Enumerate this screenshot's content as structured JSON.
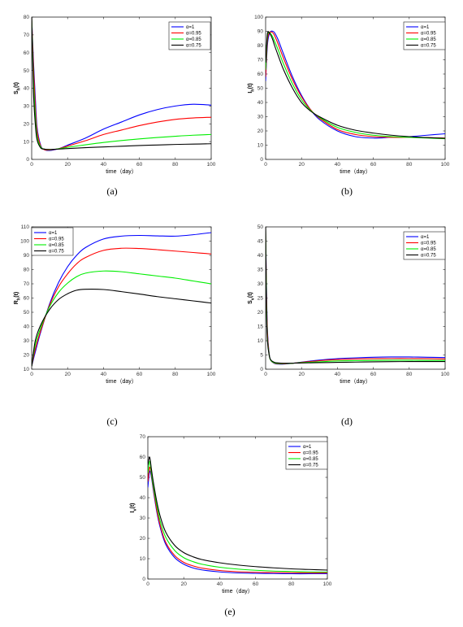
{
  "legend_labels": [
    "α=1",
    "α=0.95",
    "α=0.85",
    "α=0.75"
  ],
  "series_colors": [
    "#0000ff",
    "#ff0000",
    "#00ee00",
    "#000000"
  ],
  "chart_data": [
    {
      "type": "line",
      "caption": "(a)",
      "ylabel": "S_h(t)",
      "xlabel": "time（day）",
      "xlim": [
        0,
        100
      ],
      "ylim": [
        0,
        80
      ],
      "xticks": [
        0,
        20,
        40,
        60,
        80,
        100
      ],
      "yticks": [
        0,
        10,
        20,
        30,
        40,
        50,
        60,
        70,
        80
      ],
      "legend": "top-right",
      "series": [
        {
          "name": "α=1",
          "x": [
            0,
            1,
            2,
            3,
            5,
            7,
            10,
            15,
            20,
            30,
            40,
            50,
            60,
            70,
            80,
            90,
            100
          ],
          "y": [
            80,
            55,
            35,
            18,
            8,
            5.5,
            5,
            6,
            8,
            12,
            17,
            21,
            25,
            28,
            30,
            31,
            30.5
          ]
        },
        {
          "name": "α=0.95",
          "x": [
            0,
            1,
            2,
            3,
            5,
            7,
            10,
            15,
            20,
            30,
            40,
            50,
            60,
            70,
            80,
            90,
            100
          ],
          "y": [
            80,
            52,
            30,
            16,
            7.5,
            5.5,
            5.3,
            6,
            7.5,
            10.5,
            14,
            16.5,
            19,
            21,
            22.5,
            23.3,
            23.7
          ]
        },
        {
          "name": "α=0.85",
          "x": [
            0,
            1,
            2,
            3,
            5,
            7,
            10,
            15,
            20,
            30,
            40,
            50,
            60,
            70,
            80,
            90,
            100
          ],
          "y": [
            80,
            45,
            25,
            13,
            7,
            5.8,
            5.5,
            6,
            6.8,
            8.2,
            9.5,
            10.6,
            11.5,
            12.3,
            13,
            13.6,
            14
          ]
        },
        {
          "name": "α=0.75",
          "x": [
            0,
            1,
            2,
            3,
            5,
            7,
            10,
            15,
            20,
            30,
            40,
            50,
            60,
            70,
            80,
            90,
            100
          ],
          "y": [
            80,
            38,
            20,
            11,
            6.5,
            5.8,
            5.6,
            5.8,
            6.1,
            6.6,
            7,
            7.4,
            7.8,
            8.1,
            8.4,
            8.6,
            8.8
          ]
        }
      ]
    },
    {
      "type": "line",
      "caption": "(b)",
      "ylabel": "I_h(t)",
      "xlabel": "time（day）",
      "xlim": [
        0,
        100
      ],
      "ylim": [
        0,
        100
      ],
      "xticks": [
        0,
        20,
        40,
        60,
        80,
        100
      ],
      "yticks": [
        0,
        10,
        20,
        30,
        40,
        50,
        60,
        70,
        80,
        90,
        100
      ],
      "legend": "top-right",
      "series": [
        {
          "name": "α=1",
          "x": [
            0,
            1,
            2,
            3,
            4,
            5,
            7,
            10,
            15,
            20,
            25,
            30,
            40,
            50,
            60,
            70,
            80,
            90,
            100
          ],
          "y": [
            55,
            80,
            88,
            90,
            90,
            89,
            84,
            74,
            58,
            45,
            35,
            28,
            20,
            16,
            15,
            15.5,
            16,
            17,
            18
          ]
        },
        {
          "name": "α=0.95",
          "x": [
            0,
            1,
            2,
            3,
            4,
            5,
            7,
            10,
            15,
            20,
            25,
            30,
            40,
            50,
            60,
            70,
            80,
            90,
            100
          ],
          "y": [
            58,
            83,
            89,
            89.5,
            89,
            87,
            81,
            71,
            56,
            44,
            35,
            29,
            21,
            17.5,
            16,
            15.5,
            15.5,
            15.3,
            15
          ]
        },
        {
          "name": "α=0.85",
          "x": [
            0,
            1,
            2,
            3,
            4,
            5,
            7,
            10,
            15,
            20,
            25,
            30,
            40,
            50,
            60,
            70,
            80,
            90,
            100
          ],
          "y": [
            63,
            86,
            89,
            88,
            86,
            83,
            77,
            67,
            53,
            42,
            34.5,
            29.5,
            22.5,
            19,
            17,
            16,
            15.5,
            15,
            14.5
          ]
        },
        {
          "name": "α=0.75",
          "x": [
            0,
            1,
            2,
            3,
            4,
            5,
            7,
            10,
            15,
            20,
            25,
            30,
            40,
            50,
            60,
            70,
            80,
            90,
            100
          ],
          "y": [
            68,
            88,
            89,
            87,
            84,
            80,
            73,
            63,
            50,
            40,
            34,
            30,
            24,
            20.5,
            18.5,
            17,
            16,
            15.3,
            14.8
          ]
        }
      ]
    },
    {
      "type": "line",
      "caption": "(c)",
      "ylabel": "R_h(t)",
      "xlabel": "time（day）",
      "xlim": [
        0,
        100
      ],
      "ylim": [
        10,
        110
      ],
      "xticks": [
        0,
        20,
        40,
        60,
        80,
        100
      ],
      "yticks": [
        10,
        20,
        30,
        40,
        50,
        60,
        70,
        80,
        90,
        100,
        110
      ],
      "legend": "top-left",
      "series": [
        {
          "name": "α=1",
          "x": [
            0,
            2,
            5,
            10,
            15,
            20,
            25,
            30,
            40,
            50,
            60,
            70,
            80,
            90,
            100
          ],
          "y": [
            12,
            22,
            36,
            56,
            71,
            82,
            90,
            95.5,
            101.5,
            103.5,
            104,
            103.7,
            103.5,
            104.5,
            106
          ]
        },
        {
          "name": "α=0.95",
          "x": [
            0,
            2,
            5,
            10,
            15,
            20,
            25,
            30,
            40,
            50,
            60,
            70,
            80,
            90,
            100
          ],
          "y": [
            12,
            24,
            37,
            55,
            68,
            77,
            84,
            88.5,
            93.5,
            95,
            94.8,
            94,
            93,
            92,
            91
          ]
        },
        {
          "name": "α=0.85",
          "x": [
            0,
            2,
            5,
            10,
            15,
            20,
            25,
            30,
            40,
            50,
            60,
            70,
            80,
            90,
            100
          ],
          "y": [
            12,
            27,
            39,
            54,
            64,
            70.5,
            75,
            77.5,
            79,
            78.5,
            77,
            75.5,
            74,
            72,
            70
          ]
        },
        {
          "name": "α=0.75",
          "x": [
            0,
            2,
            5,
            10,
            15,
            20,
            25,
            30,
            40,
            50,
            60,
            70,
            80,
            90,
            100
          ],
          "y": [
            12,
            30,
            41,
            52,
            59,
            63,
            65.5,
            66.2,
            66,
            64.5,
            62.8,
            61,
            59.5,
            58,
            56.5
          ]
        }
      ]
    },
    {
      "type": "line",
      "caption": "(d)",
      "ylabel": "S_v(t)",
      "xlabel": "time（day）",
      "xlim": [
        0,
        100
      ],
      "ylim": [
        0,
        50
      ],
      "xticks": [
        0,
        20,
        40,
        60,
        80,
        100
      ],
      "yticks": [
        0,
        5,
        10,
        15,
        20,
        25,
        30,
        35,
        40,
        45,
        50
      ],
      "legend": "top-right",
      "series": [
        {
          "name": "α=1",
          "x": [
            0,
            0.5,
            1,
            2,
            3,
            5,
            7,
            10,
            15,
            20,
            30,
            40,
            50,
            60,
            70,
            80,
            90,
            100
          ],
          "y": [
            50,
            28,
            14,
            5.5,
            3,
            2,
            1.8,
            1.8,
            2.1,
            2.5,
            3.2,
            3.7,
            4,
            4.2,
            4.3,
            4.3,
            4.2,
            4.1
          ]
        },
        {
          "name": "α=0.95",
          "x": [
            0,
            0.5,
            1,
            2,
            3,
            5,
            7,
            10,
            15,
            20,
            30,
            40,
            50,
            60,
            70,
            80,
            90,
            100
          ],
          "y": [
            50,
            26,
            13,
            5.2,
            3,
            2.1,
            1.9,
            1.9,
            2.1,
            2.4,
            3,
            3.4,
            3.6,
            3.7,
            3.75,
            3.75,
            3.7,
            3.6
          ]
        },
        {
          "name": "α=0.85",
          "x": [
            0,
            0.5,
            1,
            2,
            3,
            5,
            7,
            10,
            15,
            20,
            30,
            40,
            50,
            60,
            70,
            80,
            90,
            100
          ],
          "y": [
            50,
            23,
            11,
            5,
            3,
            2.2,
            2,
            2,
            2.1,
            2.3,
            2.6,
            2.9,
            3,
            3.1,
            3.15,
            3.15,
            3.1,
            3.1
          ]
        },
        {
          "name": "α=0.75",
          "x": [
            0,
            0.5,
            1,
            2,
            3,
            5,
            7,
            10,
            15,
            20,
            30,
            40,
            50,
            60,
            70,
            80,
            90,
            100
          ],
          "y": [
            50,
            20,
            10,
            4.8,
            3.2,
            2.4,
            2.2,
            2.1,
            2.1,
            2.2,
            2.3,
            2.4,
            2.5,
            2.6,
            2.65,
            2.7,
            2.7,
            2.7
          ]
        }
      ]
    },
    {
      "type": "line",
      "caption": "(e)",
      "ylabel": "I_v(t)",
      "xlabel": "time（day）",
      "xlim": [
        0,
        100
      ],
      "ylim": [
        0,
        70
      ],
      "xticks": [
        0,
        20,
        40,
        60,
        80,
        100
      ],
      "yticks": [
        0,
        10,
        20,
        30,
        40,
        50,
        60,
        70
      ],
      "legend": "top-right",
      "series": [
        {
          "name": "α=1",
          "x": [
            0,
            1,
            2,
            3,
            5,
            7,
            10,
            15,
            20,
            25,
            30,
            40,
            50,
            60,
            70,
            80,
            90,
            100
          ],
          "y": [
            45,
            53,
            50,
            44,
            33,
            25,
            17,
            10.5,
            7.3,
            5.5,
            4.5,
            3.5,
            3,
            2.8,
            2.7,
            2.6,
            2.6,
            2.6
          ]
        },
        {
          "name": "α=0.95",
          "x": [
            0,
            1,
            2,
            3,
            5,
            7,
            10,
            15,
            20,
            25,
            30,
            40,
            50,
            60,
            70,
            80,
            90,
            100
          ],
          "y": [
            48,
            55,
            51,
            45,
            34,
            26,
            18,
            11.5,
            8.2,
            6.5,
            5.4,
            4.2,
            3.6,
            3.3,
            3.2,
            3.1,
            3,
            3
          ]
        },
        {
          "name": "α=0.85",
          "x": [
            0,
            1,
            2,
            3,
            5,
            7,
            10,
            15,
            20,
            25,
            30,
            40,
            50,
            60,
            70,
            80,
            90,
            100
          ],
          "y": [
            52,
            58,
            52,
            46,
            36,
            28,
            20.5,
            14,
            10.5,
            8.6,
            7.3,
            5.8,
            4.9,
            4.3,
            3.9,
            3.7,
            3.5,
            3.4
          ]
        },
        {
          "name": "α=0.75",
          "x": [
            0,
            1,
            2,
            3,
            5,
            7,
            10,
            15,
            20,
            25,
            30,
            40,
            50,
            60,
            70,
            80,
            90,
            100
          ],
          "y": [
            56,
            60,
            54,
            48,
            38,
            30.5,
            23,
            16.5,
            13,
            11,
            9.6,
            8,
            6.9,
            6.1,
            5.5,
            5,
            4.7,
            4.4
          ]
        }
      ]
    }
  ]
}
